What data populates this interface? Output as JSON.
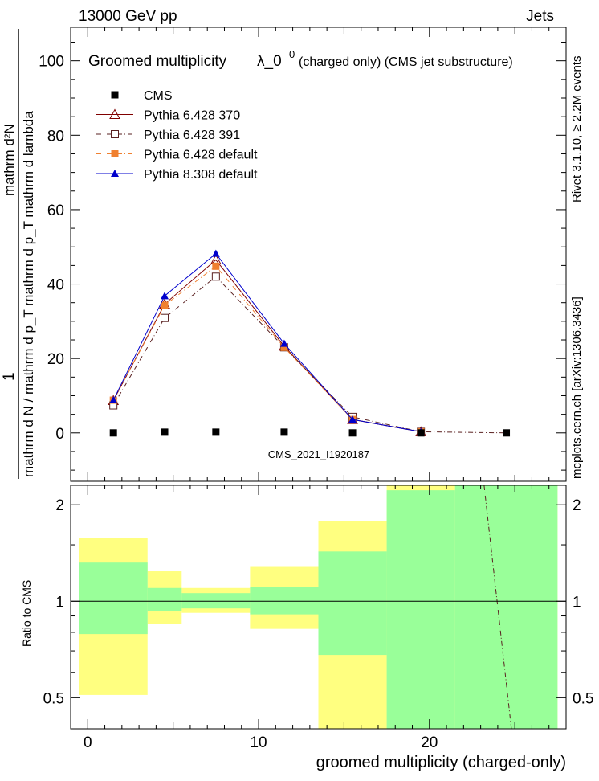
{
  "header": {
    "left": "13000 GeV pp",
    "right": "Jets"
  },
  "side_labels": {
    "rivet": "Rivet 3.1.10, ≥ 2.2M events",
    "mcplots": "mcplots.cern.ch [arXiv:1306.3436]"
  },
  "chart_data": [
    {
      "type": "line",
      "title": "Groomed multiplicity",
      "title_symbol": "λ_0",
      "title_superscript": "0",
      "title_suffix": "(charged only) (CMS jet substructure)",
      "watermark": "CMS_2021_I1920187",
      "ylabel_numerator": "1",
      "ylabel_denominator": "mathrm d N / mathrm d p_T mathrm d p_T mathrm d lambda",
      "ylabel_top": "mathrm d²N",
      "ylim": [
        -13,
        109
      ],
      "xlim": [
        -1,
        28
      ],
      "yticks": [
        "0",
        "20",
        "40",
        "60",
        "80",
        "100"
      ],
      "ytick_values": [
        0,
        20,
        40,
        60,
        80,
        100
      ],
      "x": [
        1.5,
        4.5,
        7.5,
        11.5,
        15.5,
        19.5,
        24.5
      ],
      "series": [
        {
          "name": "CMS",
          "style": "data",
          "color": "#000000",
          "marker": "square-filled",
          "values": [
            0.0,
            0.2,
            0.2,
            0.2,
            0.0,
            0.0,
            0.0
          ]
        },
        {
          "name": "Pythia 6.428 370",
          "style": "solid",
          "color": "#800000",
          "marker": "triangle-open",
          "values": [
            8.7,
            34.6,
            46.5,
            23.3,
            3.6,
            0.3,
            0.0
          ]
        },
        {
          "name": "Pythia 6.428 391",
          "style": "dashdot",
          "color": "#5a2020",
          "marker": "square-open",
          "values": [
            7.4,
            30.9,
            42.0,
            23.0,
            4.3,
            0.3,
            0.0
          ]
        },
        {
          "name": "Pythia 6.428 default",
          "style": "dashdot",
          "color": "#f08030",
          "marker": "square-filled",
          "values": [
            8.8,
            34.3,
            44.8,
            23.0,
            3.6,
            0.3,
            0.0
          ]
        },
        {
          "name": "Pythia 8.308 default",
          "style": "solid",
          "color": "#0000cc",
          "marker": "triangle-filled",
          "values": [
            8.8,
            36.8,
            48.2,
            24.0,
            3.6,
            0.3,
            0.0
          ]
        }
      ]
    },
    {
      "type": "area",
      "ylabel": "Ratio to CMS",
      "xlabel": "groomed multiplicity (charged-only)",
      "ylim": [
        0.4,
        2.3
      ],
      "xlim": [
        -1,
        28
      ],
      "xticks": [
        "0",
        "10",
        "20"
      ],
      "xtick_values": [
        0,
        10,
        20
      ],
      "yticks": [
        "0.5",
        "1",
        "2"
      ],
      "ytick_values": [
        0.5,
        1,
        2
      ],
      "bins": [
        {
          "lo": -0.5,
          "hi": 3.5,
          "yellow": [
            0.51,
            1.58
          ],
          "green": [
            0.79,
            1.32
          ]
        },
        {
          "lo": 3.5,
          "hi": 5.5,
          "yellow": [
            0.85,
            1.24
          ],
          "green": [
            0.93,
            1.1
          ]
        },
        {
          "lo": 5.5,
          "hi": 9.5,
          "yellow": [
            0.92,
            1.1
          ],
          "green": [
            0.95,
            1.06
          ]
        },
        {
          "lo": 9.5,
          "hi": 13.5,
          "yellow": [
            0.82,
            1.28
          ],
          "green": [
            0.91,
            1.11
          ]
        },
        {
          "lo": 13.5,
          "hi": 17.5,
          "yellow": [
            0.0,
            1.78
          ],
          "green": [
            0.68,
            1.43
          ]
        },
        {
          "lo": 17.5,
          "hi": 21.5,
          "yellow": [
            0.0,
            2.6
          ],
          "green": [
            0.0,
            2.22
          ]
        },
        {
          "lo": 21.5,
          "hi": 27.5,
          "yellow": [
            0.0,
            2.6
          ],
          "green": [
            0.0,
            2.6
          ]
        }
      ],
      "line": {
        "name": "Pythia 6.428 391",
        "style": "dashdot",
        "color": "#5a2020",
        "points": [
          [
            23.2,
            2.3
          ],
          [
            24.8,
            0.4
          ]
        ]
      },
      "reference": 1.0,
      "colors": {
        "yellow": "#ffff80",
        "green": "#99ff99"
      }
    }
  ]
}
